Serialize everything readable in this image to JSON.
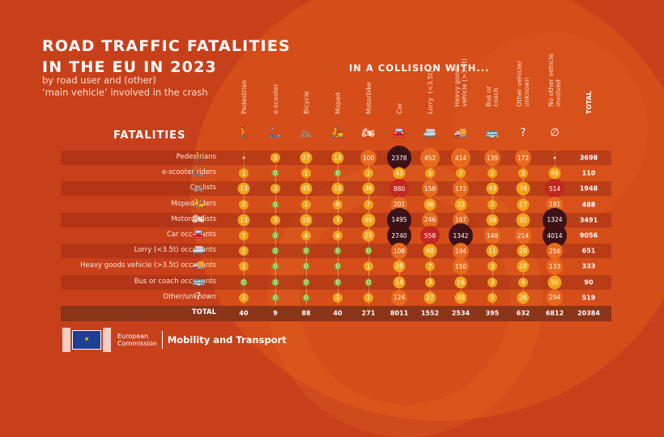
{
  "header": {
    "title_line1": "ROAD TRAFFIC FATALITIES",
    "title_line2": "IN THE EU IN 2023",
    "subtitle_line1": "by road user and (other)",
    "subtitle_line2": "‘main vehicle’ involved in the crash",
    "collision_label": "IN A COLLISION WITH...",
    "fatalities_label": "FATALITIES"
  },
  "footer": {
    "org_line1": "European",
    "org_line2": "Commission",
    "dept": "Mobility and Transport"
  },
  "colors": {
    "background": "#c8401a",
    "zero": "#7fae2a",
    "small": "#f0a21a",
    "medium": "#e86a1e",
    "large": "#c3281f",
    "very_large": "#3d1216"
  },
  "chart_data": {
    "type": "table",
    "title": "ROAD TRAFFIC FATALITIES IN THE EU IN 2023",
    "subtitle": "by road user and (other) ‘main vehicle’ involved in the crash",
    "column_group_label": "IN A COLLISION WITH...",
    "row_group_label": "FATALITIES",
    "columns": [
      {
        "label": "Pedestrian",
        "icon": "pedestrian-icon",
        "glyph": "🚶"
      },
      {
        "label": "e-scooter",
        "icon": "e-scooter-icon",
        "glyph": "🛴"
      },
      {
        "label": "Bicycle",
        "icon": "bicycle-icon",
        "glyph": "🚲"
      },
      {
        "label": "Moped",
        "icon": "moped-icon",
        "glyph": "🛵"
      },
      {
        "label": "Motorbike",
        "icon": "motorbike-icon",
        "glyph": "🏍"
      },
      {
        "label": "Car",
        "icon": "car-icon",
        "glyph": "🚘"
      },
      {
        "label": "Lorry  (<3.5t)",
        "icon": "lorry-icon",
        "glyph": "🚐"
      },
      {
        "label": "Heavy goods\nvehicle (>3.5t)",
        "icon": "truck-icon",
        "glyph": "🚚"
      },
      {
        "label": "Bus or\ncoach",
        "icon": "bus-icon",
        "glyph": "🚌"
      },
      {
        "label": "Other vehicle/\nunknown",
        "icon": "question-icon",
        "glyph": "?"
      },
      {
        "label": "No other vehicle\ninvolved",
        "icon": "empty-set-icon",
        "glyph": "∅"
      },
      {
        "label": "TOTAL",
        "icon": "",
        "glyph": ""
      }
    ],
    "rows": [
      {
        "label": "Pedestrians",
        "icon": "pedestrian-icon",
        "glyph": "🚶",
        "values": [
          null,
          3,
          27,
          13,
          100,
          2378,
          452,
          414,
          139,
          172,
          null
        ],
        "total": 3698
      },
      {
        "label": "e-scooter riders",
        "icon": "e-scooter-icon",
        "glyph": "🛴",
        "values": [
          1,
          0,
          1,
          0,
          2,
          43,
          5,
          7,
          2,
          3,
          46
        ],
        "total": 110
      },
      {
        "label": "Cyclists",
        "icon": "bicycle-icon",
        "glyph": "🚲",
        "values": [
          13,
          3,
          45,
          10,
          36,
          880,
          158,
          172,
          43,
          74,
          514
        ],
        "total": 1948
      },
      {
        "label": "Moped riders",
        "icon": "moped-icon",
        "glyph": "🛵",
        "values": [
          2,
          0,
          1,
          9,
          7,
          201,
          36,
          32,
          2,
          17,
          181
        ],
        "total": 488
      },
      {
        "label": "Motorcyclists",
        "icon": "motorbike-icon",
        "glyph": "🏍",
        "values": [
          13,
          3,
          10,
          3,
          99,
          1495,
          246,
          167,
          39,
          92,
          1324
        ],
        "total": 3491
      },
      {
        "label": "Car occupants",
        "icon": "car-icon",
        "glyph": "🚘",
        "values": [
          7,
          0,
          4,
          4,
          25,
          2740,
          558,
          1342,
          148,
          214,
          4014
        ],
        "total": 9056
      },
      {
        "label": "Lorry (<3.5t) occupants",
        "icon": "lorry-icon",
        "glyph": "🚐",
        "values": [
          2,
          0,
          0,
          0,
          0,
          108,
          60,
          194,
          11,
          20,
          256
        ],
        "total": 651
      },
      {
        "label": "Heavy goods vehicle (>3.5t) occupants",
        "icon": "truck-icon",
        "glyph": "🚚",
        "values": [
          1,
          0,
          0,
          0,
          1,
          28,
          7,
          150,
          3,
          10,
          133
        ],
        "total": 333
      },
      {
        "label": "Bus or coach occupants",
        "icon": "bus-icon",
        "glyph": "🚌",
        "values": [
          0,
          0,
          0,
          0,
          0,
          14,
          3,
          16,
          3,
          4,
          50
        ],
        "total": 90
      },
      {
        "label": "Other/unknown",
        "icon": "question-icon",
        "glyph": "?",
        "values": [
          1,
          0,
          0,
          1,
          1,
          124,
          27,
          40,
          5,
          26,
          294
        ],
        "total": 519
      }
    ],
    "totals": {
      "label": "TOTAL",
      "values": [
        40,
        9,
        88,
        40,
        271,
        8011,
        1552,
        2534,
        395,
        632,
        6812
      ],
      "grand_total": 20384
    }
  }
}
